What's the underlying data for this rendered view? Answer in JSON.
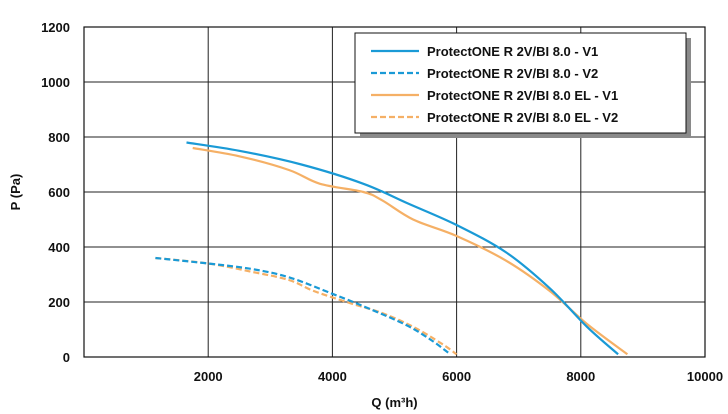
{
  "chart_data": {
    "type": "line",
    "title": "",
    "xlabel": "Q (m³h)",
    "ylabel": "P (Pa)",
    "xlim": [
      0,
      10000
    ],
    "ylim": [
      0,
      1200
    ],
    "x_ticks": [
      "2000",
      "4000",
      "6000",
      "8000",
      "10000"
    ],
    "y_ticks": [
      "0",
      "200",
      "400",
      "600",
      "800",
      "1000",
      "1200"
    ],
    "grid": true,
    "legend_position": "top-right",
    "series": [
      {
        "name": "ProtectONE R 2V/BI 8.0 - V1",
        "color": "#1a9ad6",
        "dash": "solid",
        "points": [
          [
            1650,
            780
          ],
          [
            2500,
            750
          ],
          [
            3500,
            700
          ],
          [
            4500,
            630
          ],
          [
            5200,
            560
          ],
          [
            6000,
            480
          ],
          [
            6800,
            380
          ],
          [
            7500,
            250
          ],
          [
            8100,
            110
          ],
          [
            8600,
            10
          ]
        ]
      },
      {
        "name": "ProtectONE R 2V/BI 8.0 - V2",
        "color": "#1a9ad6",
        "dash": "dashed",
        "points": [
          [
            1150,
            360
          ],
          [
            2000,
            340
          ],
          [
            2700,
            320
          ],
          [
            3300,
            290
          ],
          [
            4000,
            230
          ],
          [
            4600,
            175
          ],
          [
            5200,
            115
          ],
          [
            5600,
            60
          ],
          [
            5900,
            10
          ]
        ]
      },
      {
        "name": "ProtectONE R 2V/BI 8.0 EL - V1",
        "color": "#f5b066",
        "dash": "solid",
        "points": [
          [
            1750,
            760
          ],
          [
            2500,
            730
          ],
          [
            3300,
            680
          ],
          [
            3800,
            630
          ],
          [
            4500,
            600
          ],
          [
            4800,
            570
          ],
          [
            5300,
            500
          ],
          [
            6000,
            440
          ],
          [
            6800,
            350
          ],
          [
            7500,
            240
          ],
          [
            8100,
            120
          ],
          [
            8750,
            10
          ]
        ]
      },
      {
        "name": "ProtectONE R 2V/BI 8.0 EL - V2",
        "color": "#f5b066",
        "dash": "dashed",
        "points": [
          [
            1150,
            360
          ],
          [
            2000,
            340
          ],
          [
            2700,
            310
          ],
          [
            3300,
            280
          ],
          [
            3700,
            240
          ],
          [
            4300,
            195
          ],
          [
            4800,
            160
          ],
          [
            5300,
            110
          ],
          [
            5750,
            50
          ],
          [
            6000,
            10
          ]
        ]
      }
    ]
  }
}
